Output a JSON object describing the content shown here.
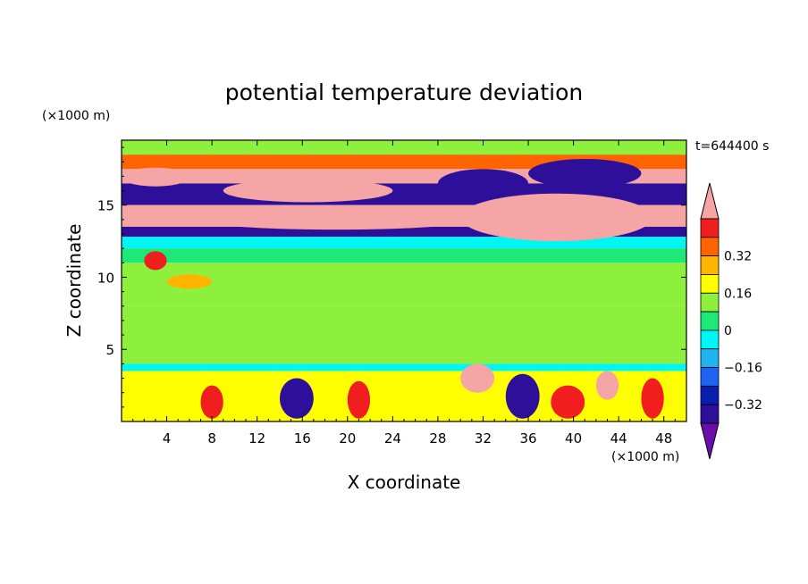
{
  "chart_data": {
    "type": "heatmap",
    "title": "potential temperature deviation",
    "time_label": "t=644400 s",
    "xlabel": "X coordinate",
    "ylabel": "Z coordinate",
    "x_unit": "(×1000 m)",
    "y_unit": "(×1000 m)",
    "xlim": [
      0,
      50
    ],
    "ylim": [
      0,
      19.5
    ],
    "x_ticks": [
      4,
      8,
      12,
      16,
      20,
      24,
      28,
      32,
      36,
      40,
      44,
      48
    ],
    "y_ticks": [
      5,
      10,
      15
    ],
    "colorbar": {
      "levels": [
        -0.48,
        -0.4,
        -0.32,
        -0.24,
        -0.16,
        -0.08,
        0,
        0.08,
        0.16,
        0.24,
        0.32,
        0.4,
        0.48
      ],
      "tick_labels": [
        "0.32",
        "0.16",
        "0",
        "−0.16",
        "−0.32"
      ],
      "tick_values": [
        0.32,
        0.16,
        0,
        -0.16,
        -0.32
      ],
      "colors": [
        "#6a0dad",
        "#2e0f9a",
        "#0a1fb0",
        "#1e64f0",
        "#1eb4f0",
        "#00f5f5",
        "#1fe87a",
        "#8cf03c",
        "#ffff00",
        "#ffb400",
        "#ff6400",
        "#f01e1e",
        "#f5a5a5"
      ]
    },
    "bands": [
      {
        "z": [
          18.5,
          19.5
        ],
        "value": 0.02
      },
      {
        "z": [
          17.5,
          18.5
        ],
        "value": 0.3
      },
      {
        "z": [
          16.5,
          17.5
        ],
        "value": 0.45
      },
      {
        "z": [
          15.0,
          16.5
        ],
        "value": -0.44
      },
      {
        "z": [
          13.5,
          15.0
        ],
        "value": 0.42
      },
      {
        "z": [
          12.8,
          13.5
        ],
        "value": -0.42
      },
      {
        "z": [
          12.0,
          12.8
        ],
        "value": -0.1
      },
      {
        "z": [
          11.0,
          12.0
        ],
        "value": -0.05
      },
      {
        "z": [
          8.0,
          11.0
        ],
        "value": 0.03
      },
      {
        "z": [
          4.0,
          8.0
        ],
        "value": 0.07
      },
      {
        "z": [
          3.5,
          4.0
        ],
        "value": -0.1
      },
      {
        "z": [
          0.0,
          3.5
        ],
        "value": 0.1
      }
    ],
    "features": [
      {
        "x": [
          0,
          6
        ],
        "z": [
          16.3,
          17.6
        ],
        "value": 0.45
      },
      {
        "x": [
          9,
          24
        ],
        "z": [
          15.2,
          16.8
        ],
        "value": 0.45
      },
      {
        "x": [
          28,
          36
        ],
        "z": [
          15.5,
          17.5
        ],
        "value": -0.44
      },
      {
        "x": [
          36,
          46
        ],
        "z": [
          16.2,
          18.2
        ],
        "value": -0.44
      },
      {
        "x": [
          8,
          30
        ],
        "z": [
          13.3,
          14.4
        ],
        "value": 0.45
      },
      {
        "x": [
          30,
          47
        ],
        "z": [
          12.5,
          15.8
        ],
        "value": 0.45
      },
      {
        "x": [
          4,
          8
        ],
        "z": [
          9.2,
          10.2
        ],
        "value": 0.24
      },
      {
        "x": [
          2,
          4
        ],
        "z": [
          10.5,
          11.8
        ],
        "value": 0.35
      },
      {
        "x": [
          30,
          33
        ],
        "z": [
          2.0,
          4.0
        ],
        "value": 0.45
      },
      {
        "x": [
          42,
          44
        ],
        "z": [
          1.5,
          3.5
        ],
        "value": 0.45
      },
      {
        "x": [
          14,
          17
        ],
        "z": [
          0.2,
          3.0
        ],
        "value": -0.44
      },
      {
        "x": [
          34,
          37
        ],
        "z": [
          0.2,
          3.3
        ],
        "value": -0.44
      },
      {
        "x": [
          7,
          9
        ],
        "z": [
          0.2,
          2.5
        ],
        "value": 0.35
      },
      {
        "x": [
          20,
          22
        ],
        "z": [
          0.2,
          2.8
        ],
        "value": 0.35
      },
      {
        "x": [
          38,
          41
        ],
        "z": [
          0.2,
          2.5
        ],
        "value": 0.35
      },
      {
        "x": [
          46,
          48
        ],
        "z": [
          0.2,
          3.0
        ],
        "value": 0.35
      }
    ]
  }
}
